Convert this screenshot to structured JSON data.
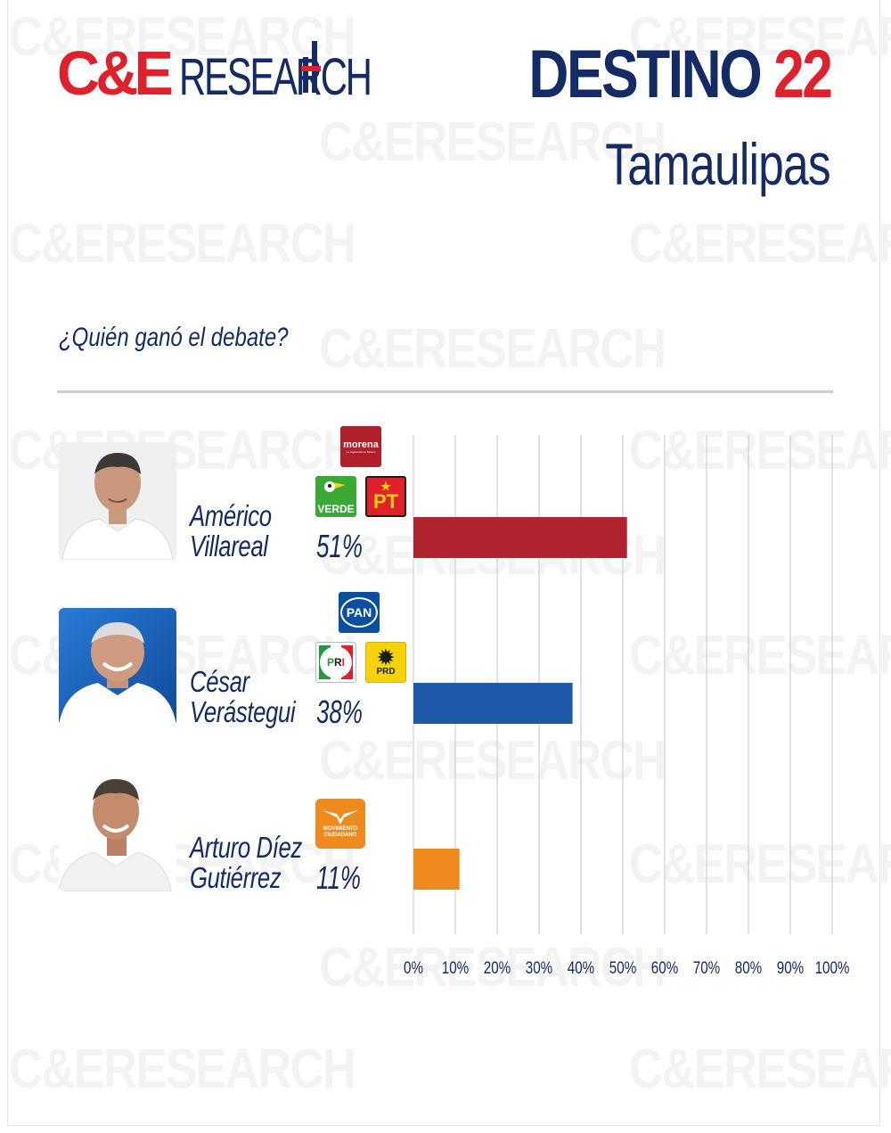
{
  "brand": {
    "logo_ce": "C&E",
    "logo_research": "RESEARCH"
  },
  "header": {
    "title_word": "DESTINO",
    "title_number": "22",
    "subtitle": "Tamaulipas"
  },
  "question": "¿Quién ganó el debate?",
  "watermark_text": "C&ERESEARCH",
  "candidates": [
    {
      "first": "Américo",
      "last": "Villareal",
      "pct_label": "51%",
      "parties": [
        "morena",
        "VERDE",
        "PT"
      ]
    },
    {
      "first": "César",
      "last": "Verástegui",
      "pct_label": "38%",
      "parties": [
        "PAN",
        "PRI",
        "PRD"
      ]
    },
    {
      "first": "Arturo Díez",
      "last": "Gutiérrez",
      "pct_label": "11%",
      "parties": [
        "MOVIMIENTO CIUDADANO"
      ]
    }
  ],
  "party_logos": {
    "morena": {
      "label": "morena",
      "sub": "La esperanza de México",
      "color": "#b0202b"
    },
    "verde": {
      "label": "VERDE",
      "color": "#3aa935"
    },
    "pt": {
      "label": "PT",
      "color": "#e0202b"
    },
    "pan": {
      "label": "PAN",
      "color": "#0b4fa0"
    },
    "pri_letters": [
      "P",
      "R",
      "I"
    ],
    "prd": {
      "label": "PRD",
      "color": "#f6d20a"
    },
    "mc": {
      "label": "MOVIMIENTO CIUDADANO",
      "color": "#ee8a1e"
    }
  },
  "chart_data": {
    "type": "bar",
    "orientation": "horizontal",
    "title": "¿Quién ganó el debate?",
    "categories": [
      "Américo Villareal",
      "César Verástegui",
      "Arturo Díez Gutiérrez"
    ],
    "values": [
      51,
      38,
      11
    ],
    "colors": [
      "#b0232f",
      "#1e5aa8",
      "#ef8a1f"
    ],
    "xlim": [
      0,
      100
    ],
    "x_ticks": [
      "0%",
      "10%",
      "20%",
      "30%",
      "40%",
      "50%",
      "60%",
      "70%",
      "80%",
      "90%",
      "100%"
    ],
    "grid": true,
    "legend": "none"
  }
}
